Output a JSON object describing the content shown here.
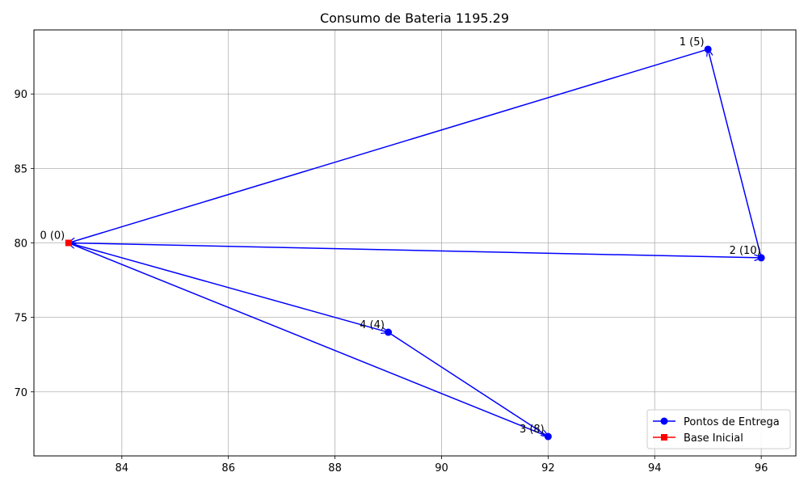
{
  "chart_data": {
    "type": "line",
    "title": "Consumo de Bateria 1195.29",
    "xlabel": "",
    "ylabel": "",
    "xlim": [
      82.35,
      96.65
    ],
    "ylim": [
      65.7,
      94.3
    ],
    "xticks": [
      84,
      86,
      88,
      90,
      92,
      94,
      96
    ],
    "yticks": [
      70,
      75,
      80,
      85,
      90
    ],
    "grid": true,
    "legend_position": "lower-right",
    "points": [
      {
        "id": 0,
        "x": 83,
        "y": 80,
        "label": "0 (0)",
        "kind": "base"
      },
      {
        "id": 1,
        "x": 95,
        "y": 93,
        "label": "1 (5)",
        "kind": "delivery"
      },
      {
        "id": 2,
        "x": 96,
        "y": 79,
        "label": "2 (10)",
        "kind": "delivery"
      },
      {
        "id": 3,
        "x": 92,
        "y": 67,
        "label": "3 (8)",
        "kind": "delivery"
      },
      {
        "id": 4,
        "x": 89,
        "y": 74,
        "label": "4 (4)",
        "kind": "delivery"
      }
    ],
    "routes": [
      [
        0,
        2
      ],
      [
        2,
        1
      ],
      [
        1,
        0
      ],
      [
        0,
        4
      ],
      [
        4,
        3
      ],
      [
        3,
        0
      ]
    ],
    "series": [
      {
        "name": "Pontos de Entrega",
        "color": "#0000ff",
        "marker": "circle"
      },
      {
        "name": "Base Inicial",
        "color": "#ff0000",
        "marker": "square"
      }
    ]
  }
}
